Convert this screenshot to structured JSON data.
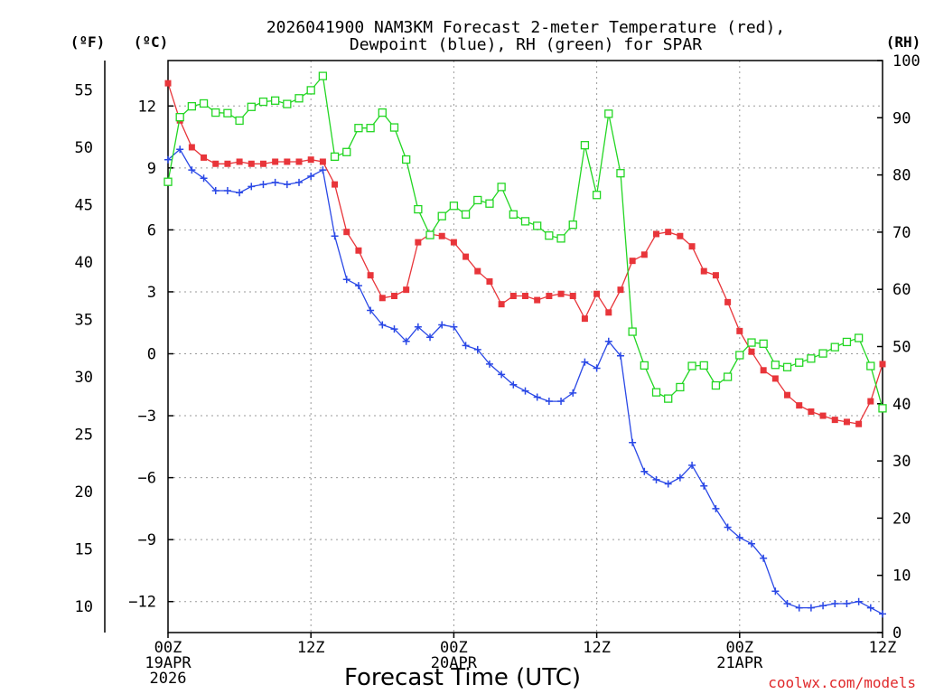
{
  "chart_data": {
    "type": "line",
    "title_line1": "2026041900 NAM3KM Forecast 2-meter Temperature (red),",
    "title_line2": "Dewpoint (blue), RH (green) for SPAR",
    "xlabel": "Forecast Time (UTC)",
    "watermark": "coolwx.com/models",
    "units": {
      "fahrenheit": "(ºF)",
      "celsius": "(ºC)",
      "rh": "(RH)"
    },
    "x_range_hours": [
      0,
      60
    ],
    "x_ticks": [
      {
        "hour": 0,
        "lines": [
          "00Z",
          "19APR",
          "2026"
        ]
      },
      {
        "hour": 12,
        "lines": [
          "12Z"
        ]
      },
      {
        "hour": 24,
        "lines": [
          "00Z",
          "20APR"
        ]
      },
      {
        "hour": 36,
        "lines": [
          "12Z"
        ]
      },
      {
        "hour": 48,
        "lines": [
          "00Z",
          "21APR"
        ]
      },
      {
        "hour": 60,
        "lines": [
          "12Z"
        ]
      }
    ],
    "y_celsius_range": [
      -13.5,
      14.2
    ],
    "y_celsius_ticks": [
      "12",
      "9",
      "6",
      "3",
      "0",
      "−3",
      "−6",
      "−9",
      "−12"
    ],
    "y_celsius_tick_values": [
      12,
      9,
      6,
      3,
      0,
      -3,
      -6,
      -9,
      -12
    ],
    "y_fahrenheit_ticks": [
      "55",
      "50",
      "45",
      "40",
      "35",
      "30",
      "25",
      "20",
      "15",
      "10"
    ],
    "y_fahrenheit_tick_values": [
      55,
      50,
      45,
      40,
      35,
      30,
      25,
      20,
      15,
      10
    ],
    "y_rh_range": [
      0,
      100
    ],
    "y_rh_ticks": [
      "100",
      "90",
      "80",
      "70",
      "60",
      "50",
      "40",
      "30",
      "20",
      "10",
      "0"
    ],
    "y_rh_tick_values": [
      100,
      90,
      80,
      70,
      60,
      50,
      40,
      30,
      20,
      10,
      0
    ],
    "series": [
      {
        "name": "2-meter Temperature",
        "unit": "C",
        "color": "#e8353a",
        "marker": "filled-square",
        "hours": [
          0,
          1,
          2,
          3,
          4,
          5,
          6,
          7,
          8,
          9,
          10,
          11,
          12,
          13,
          14,
          15,
          16,
          17,
          18,
          19,
          20,
          21,
          22,
          23,
          24,
          25,
          26,
          27,
          28,
          29,
          30,
          31,
          32,
          33,
          34,
          35,
          36,
          37,
          38,
          39,
          40,
          41,
          42,
          43,
          44,
          45,
          46,
          47,
          48,
          49,
          50,
          51,
          52,
          53,
          54,
          55,
          56,
          57,
          58,
          59,
          60
        ],
        "values": [
          13.1,
          11.3,
          10.0,
          9.5,
          9.2,
          9.2,
          9.3,
          9.2,
          9.2,
          9.3,
          9.3,
          9.3,
          9.4,
          9.3,
          8.2,
          5.9,
          5.0,
          3.8,
          2.7,
          2.8,
          3.1,
          5.4,
          5.8,
          5.7,
          5.4,
          4.7,
          4.0,
          3.5,
          2.4,
          2.8,
          2.8,
          2.6,
          2.8,
          2.9,
          2.8,
          1.7,
          2.9,
          2.0,
          3.1,
          4.5,
          4.8,
          5.8,
          5.9,
          5.7,
          5.2,
          4.0,
          3.8,
          2.5,
          1.1,
          0.1,
          -0.8,
          -1.2,
          -2.0,
          -2.5,
          -2.8,
          -3.0,
          -3.2,
          -3.3,
          -3.4,
          -2.3,
          -0.5
        ]
      },
      {
        "name": "Dewpoint",
        "unit": "C",
        "color": "#2a48e6",
        "marker": "plus",
        "hours": [
          0,
          1,
          2,
          3,
          4,
          5,
          6,
          7,
          8,
          9,
          10,
          11,
          12,
          13,
          14,
          15,
          16,
          17,
          18,
          19,
          20,
          21,
          22,
          23,
          24,
          25,
          26,
          27,
          28,
          29,
          30,
          31,
          32,
          33,
          34,
          35,
          36,
          37,
          38,
          39,
          40,
          41,
          42,
          43,
          44,
          45,
          46,
          47,
          48,
          49,
          50,
          51,
          52,
          53,
          54,
          55,
          56,
          57,
          58,
          59,
          60
        ],
        "values": [
          9.4,
          9.9,
          8.9,
          8.5,
          7.9,
          7.9,
          7.8,
          8.1,
          8.2,
          8.3,
          8.2,
          8.3,
          8.6,
          8.9,
          5.7,
          3.6,
          3.3,
          2.1,
          1.4,
          1.2,
          0.6,
          1.3,
          0.8,
          1.4,
          1.3,
          0.4,
          0.2,
          -0.5,
          -1.0,
          -1.5,
          -1.8,
          -2.1,
          -2.3,
          -2.3,
          -1.9,
          -0.4,
          -0.7,
          0.6,
          -0.1,
          -4.3,
          -5.7,
          -6.1,
          -6.3,
          -6.0,
          -5.4,
          -6.4,
          -7.5,
          -8.4,
          -8.9,
          -9.2,
          -9.9,
          -11.5,
          -12.1,
          -12.3,
          -12.3,
          -12.2,
          -12.1,
          -12.1,
          -12.0,
          -12.3,
          -12.6
        ]
      },
      {
        "name": "RH",
        "unit": "%",
        "color": "#23d623",
        "marker": "open-square",
        "hours": [
          0,
          1,
          2,
          3,
          4,
          5,
          6,
          7,
          8,
          9,
          10,
          11,
          12,
          13,
          14,
          15,
          16,
          17,
          18,
          19,
          20,
          21,
          22,
          23,
          24,
          25,
          26,
          27,
          28,
          29,
          30,
          31,
          32,
          33,
          34,
          35,
          36,
          37,
          38,
          39,
          40,
          41,
          42,
          43,
          44,
          45,
          46,
          47,
          48,
          49,
          50,
          51,
          52,
          53,
          54,
          55,
          56,
          57,
          58,
          59,
          60
        ],
        "values": [
          78.8,
          90.1,
          92.0,
          92.5,
          90.9,
          90.8,
          89.5,
          91.9,
          92.8,
          93.0,
          92.4,
          93.4,
          94.8,
          97.3,
          83.2,
          84.0,
          88.2,
          88.2,
          90.9,
          88.3,
          82.7,
          74.0,
          69.5,
          72.8,
          74.6,
          73.1,
          75.6,
          75.0,
          77.9,
          73.1,
          71.9,
          71.1,
          69.4,
          68.9,
          71.3,
          85.2,
          76.5,
          90.7,
          80.3,
          52.6,
          46.7,
          42.0,
          40.9,
          42.9,
          46.6,
          46.7,
          43.2,
          44.7,
          48.5,
          50.7,
          50.5,
          46.8,
          46.4,
          47.2,
          47.9,
          48.8,
          49.9,
          50.8,
          51.5,
          46.6,
          39.2
        ]
      }
    ]
  }
}
